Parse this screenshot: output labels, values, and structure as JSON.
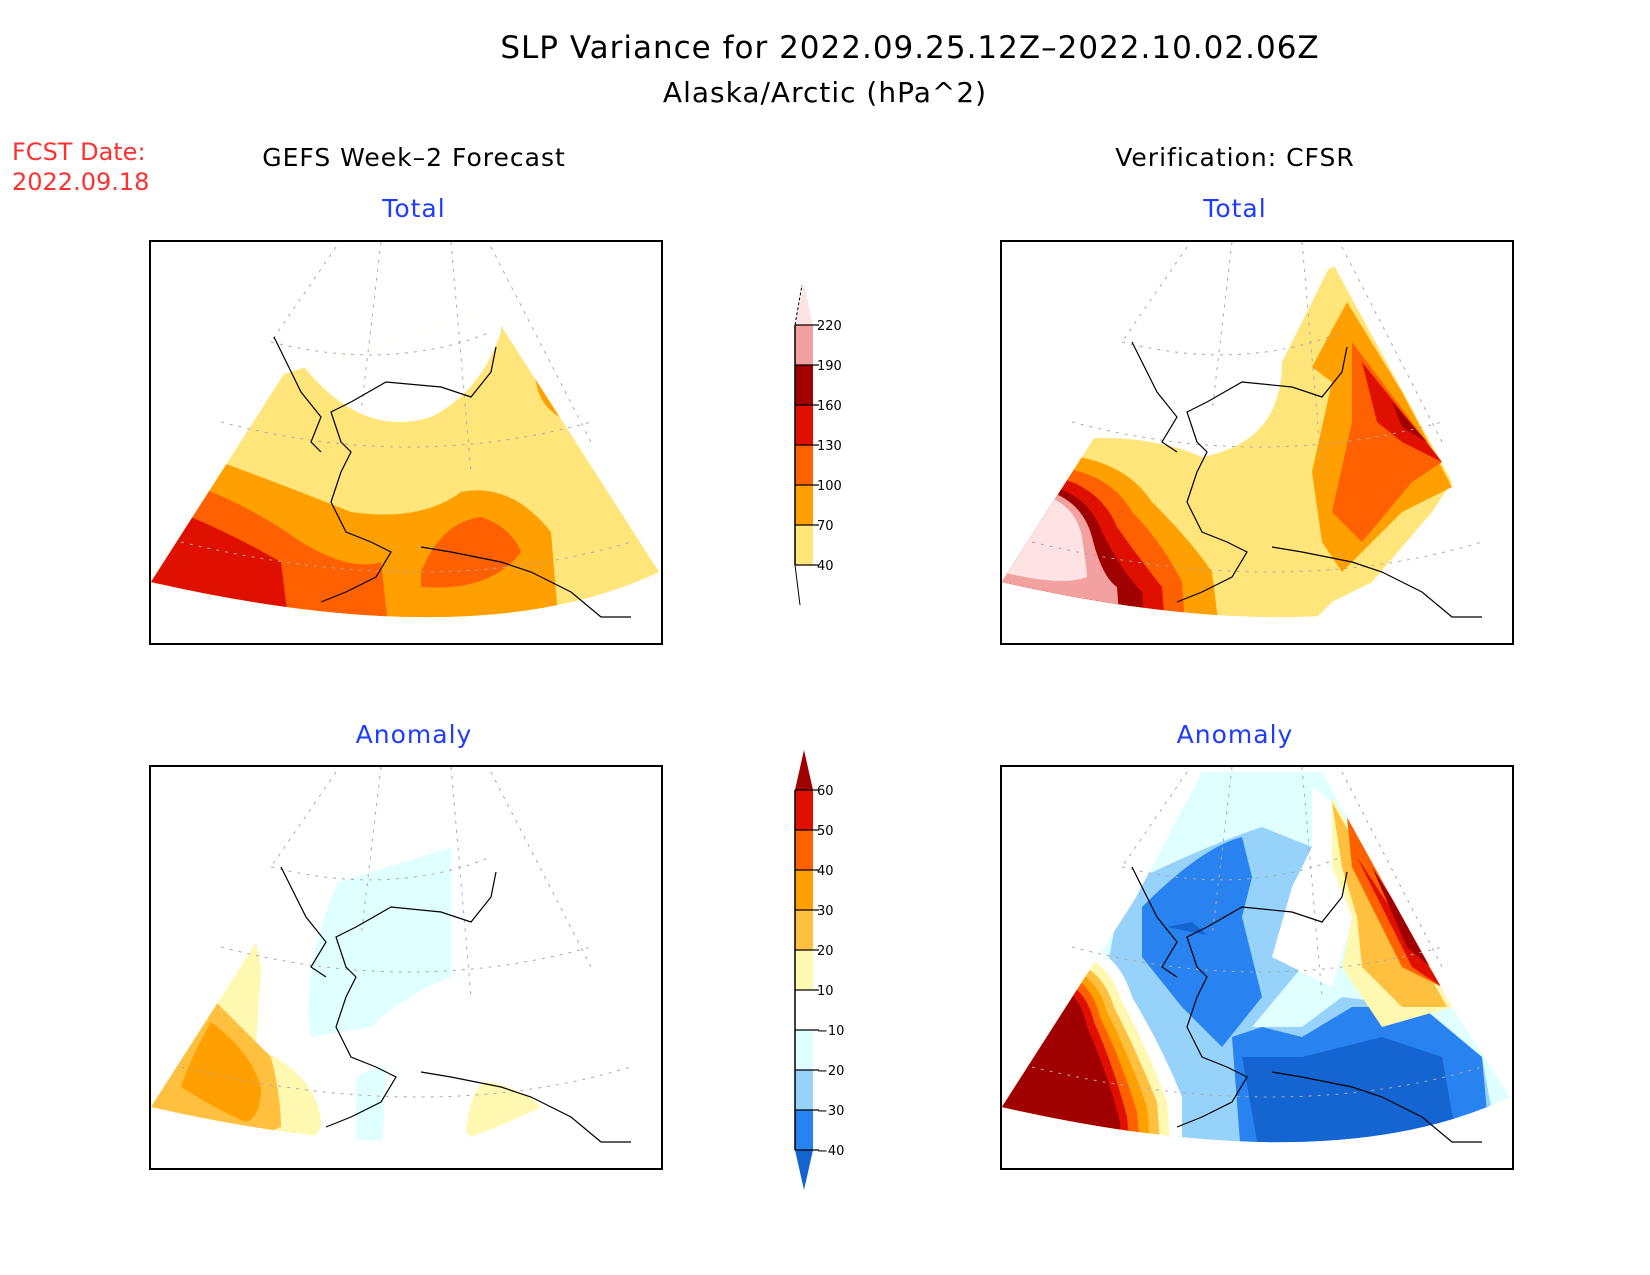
{
  "title": {
    "line1": "SLP Variance for 2022.09.25.12Z–2022.10.02.06Z",
    "line2": "Alaska/Arctic (hPa^2)"
  },
  "forecast_date": {
    "label": "FCST Date:",
    "value": "2022.09.18"
  },
  "columns": {
    "left_header": "GEFS Week–2 Forecast",
    "right_header": "Verification: CFSR"
  },
  "panels": {
    "top_left_title": "Total",
    "top_right_title": "Total",
    "bottom_left_title": "Anomaly",
    "bottom_right_title": "Anomaly"
  },
  "chart_data": [
    {
      "type": "heatmap",
      "title": "Total",
      "source": "GEFS Week-2 Forecast",
      "units": "hPa^2",
      "description": "Filled contours of SLP variance over Alaska/Arctic; highest (130-160) in SW Bering Sea, 100-130 over Gulf of Alaska center, 40-70 over central Alaska, below 40 over Arctic Ocean north of Alaska",
      "levels": [
        40,
        70,
        100,
        130,
        160,
        190,
        220
      ]
    },
    {
      "type": "heatmap",
      "title": "Total",
      "source": "Verification: CFSR",
      "units": "hPa^2",
      "description": "Filled contours; maximum above 220 over western Bering Sea / Kamchatka, 160-190 band east of it, 130-190 over Yukon/NW Canada, below 40 over northern Alaska and Arctic",
      "levels": [
        40,
        70,
        100,
        130,
        160,
        190,
        220
      ]
    },
    {
      "type": "heatmap",
      "title": "Anomaly",
      "source": "GEFS Week-2 Forecast",
      "units": "hPa^2",
      "description": "Weak anomalies; +20 to +40 over western Bering Sea, -10 to -20 over northern/western Alaska and Cook Inlet, +10 to +20 patch over Gulf of Alaska",
      "levels": [
        -40,
        -30,
        -20,
        -10,
        10,
        20,
        30,
        40,
        50,
        60
      ]
    },
    {
      "type": "heatmap",
      "title": "Anomaly",
      "source": "Verification: CFSR",
      "units": "hPa^2",
      "description": "Strong anomalies; >60 over western Bering Sea and over NW Canada, -30 to -40 over northern Alaska, < -40 over Gulf of Alaska",
      "levels": [
        -40,
        -30,
        -20,
        -10,
        10,
        20,
        30,
        40,
        50,
        60
      ]
    }
  ],
  "colorbars": {
    "total": {
      "labels": [
        "220",
        "190",
        "160",
        "130",
        "100",
        "70",
        "40"
      ],
      "colors": [
        "#fde3e3",
        "#f3a0a0",
        "#a00000",
        "#e01000",
        "#ff6000",
        "#ffa000",
        "#ffe57a"
      ]
    },
    "anomaly": {
      "labels": [
        "60",
        "50",
        "40",
        "30",
        "20",
        "10",
        "−10",
        "−20",
        "−30",
        "−40"
      ],
      "colors": [
        "#a00000",
        "#e01000",
        "#ff6000",
        "#ffa000",
        "#ffc040",
        "#fff8b0",
        "#ffffff",
        "#e0ffff",
        "#96d2fa",
        "#2882f0",
        "#1464d2"
      ]
    }
  }
}
